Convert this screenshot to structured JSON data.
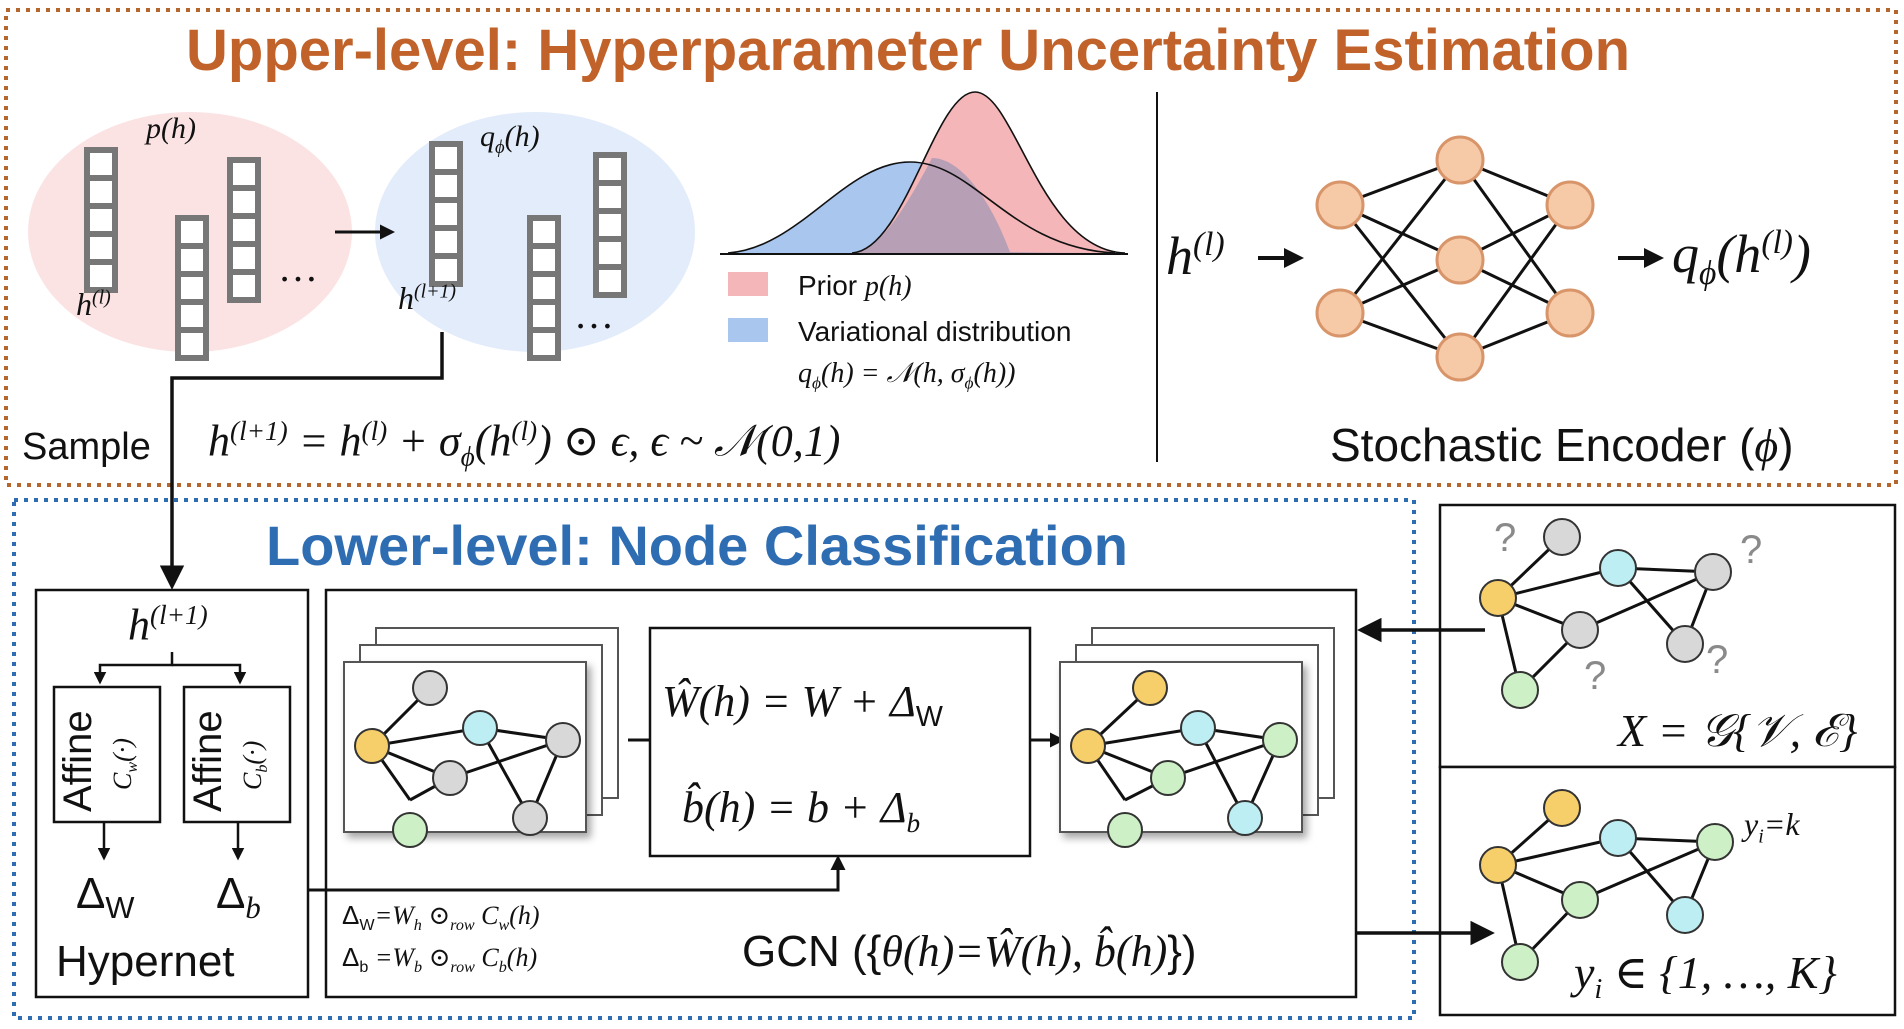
{
  "upper": {
    "title": "Upper-level: Hyperparameter Uncertainty Estimation",
    "prior_label": "p(h)",
    "variational_label": "qϕ(h)",
    "h_l": "h(l)",
    "h_l1": "h(l+1)",
    "ellipsis": "…",
    "legend_prior": "Prior p(h)",
    "legend_variational": "Variational  distribution",
    "legend_formula": "qϕ(h)  =  𝒩(h, σϕ(h))",
    "sample_label": "Sample",
    "sample_formula": "h(l+1) = h(l) + σϕ(h(l)) ⊙ ϵ, ϵ ~ 𝒩(0,1)",
    "encoder_input": "h(l)",
    "encoder_output": "qϕ(h(l))",
    "encoder_label": "Stochastic Encoder (ϕ)"
  },
  "lower": {
    "title": "Lower-level: Node Classification",
    "hypernet_input": "h(l+1)",
    "affine_w": "Affine",
    "affine_w_sub": "Cᵥ(·)",
    "affine_b": "Affine",
    "affine_b_sub": "Cᵦ(·)",
    "delta_w": "ΔW",
    "delta_b": "Δb",
    "hypernet_label": "Hypernet",
    "formula_w": "Ŵ(h) = W + ΔW",
    "formula_b": "b̂(h) = b + Δb",
    "delta_w_def": "ΔW=Wh ⊙row Cw(h)",
    "delta_b_def": "Δb =Wb ⊙row Cb(h)",
    "gcn_label": "GCN ({θ(h)=Ŵ(h), b̂(h)})",
    "input_graph_label": "X = 𝒢{𝒱, ℰ}",
    "question_mark": "?",
    "output_label_yi": "yi=k",
    "output_graph_label": "yi ∈ {1, …, K}"
  },
  "colors": {
    "upper_border": "#b5652e",
    "lower_border": "#2f6db3",
    "prior_fill": "#f4b6b8",
    "variational_fill": "#a9c6ef",
    "overlap_fill": "#b79fb5",
    "prior_ellipse": "#fbe3e4",
    "variational_ellipse": "#e3ecfa",
    "neuron_fill": "#f6c9a7",
    "neuron_stroke": "#d9956a",
    "node_yellow": "#f7cf6a",
    "node_gray": "#d8d8d8",
    "node_cyan": "#bdeef4",
    "node_green": "#cdf0c6",
    "question_gray": "#8a8a8a"
  }
}
